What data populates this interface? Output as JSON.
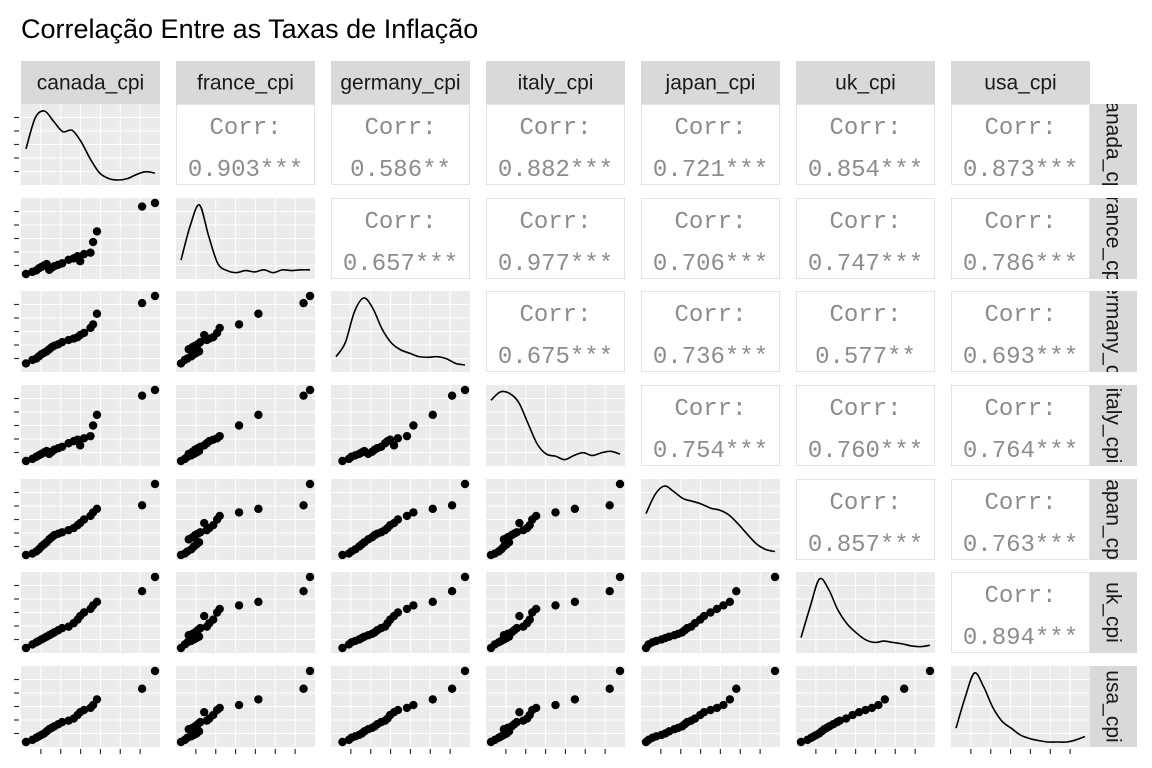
{
  "chart_data": {
    "type": "scatter",
    "title": "Correlação Entre as Taxas de Inflação",
    "variables": [
      "canada_cpi",
      "france_cpi",
      "germany_cpi",
      "italy_cpi",
      "japan_cpi",
      "uk_cpi",
      "usa_cpi"
    ],
    "corr_label": "Corr:",
    "correlations": [
      {
        "row": 0,
        "col": 1,
        "value": "0.903***"
      },
      {
        "row": 0,
        "col": 2,
        "value": "0.586**"
      },
      {
        "row": 0,
        "col": 3,
        "value": "0.882***"
      },
      {
        "row": 0,
        "col": 4,
        "value": "0.721***"
      },
      {
        "row": 0,
        "col": 5,
        "value": "0.854***"
      },
      {
        "row": 0,
        "col": 6,
        "value": "0.873***"
      },
      {
        "row": 1,
        "col": 2,
        "value": "0.657***"
      },
      {
        "row": 1,
        "col": 3,
        "value": "0.977***"
      },
      {
        "row": 1,
        "col": 4,
        "value": "0.706***"
      },
      {
        "row": 1,
        "col": 5,
        "value": "0.747***"
      },
      {
        "row": 1,
        "col": 6,
        "value": "0.786***"
      },
      {
        "row": 2,
        "col": 3,
        "value": "0.675***"
      },
      {
        "row": 2,
        "col": 4,
        "value": "0.736***"
      },
      {
        "row": 2,
        "col": 5,
        "value": "0.577**"
      },
      {
        "row": 2,
        "col": 6,
        "value": "0.693***"
      },
      {
        "row": 3,
        "col": 4,
        "value": "0.754***"
      },
      {
        "row": 3,
        "col": 5,
        "value": "0.760***"
      },
      {
        "row": 3,
        "col": 6,
        "value": "0.764***"
      },
      {
        "row": 4,
        "col": 5,
        "value": "0.857***"
      },
      {
        "row": 4,
        "col": 6,
        "value": "0.763***"
      },
      {
        "row": 5,
        "col": 6,
        "value": "0.894***"
      }
    ],
    "observations": {
      "canada_cpi": [
        0.0,
        0.05,
        0.08,
        0.1,
        0.12,
        0.14,
        0.16,
        0.18,
        0.2,
        0.22,
        0.25,
        0.28,
        0.33,
        0.37,
        0.4,
        0.42,
        0.45,
        0.5,
        0.52,
        0.55,
        0.9,
        1.0
      ],
      "france_cpi": [
        0.0,
        0.03,
        0.05,
        0.08,
        0.1,
        0.12,
        0.14,
        0.06,
        0.09,
        0.11,
        0.13,
        0.15,
        0.2,
        0.22,
        0.25,
        0.18,
        0.28,
        0.3,
        0.45,
        0.6,
        0.95,
        1.0
      ],
      "germany_cpi": [
        0.05,
        0.1,
        0.12,
        0.15,
        0.18,
        0.2,
        0.22,
        0.25,
        0.28,
        0.3,
        0.32,
        0.35,
        0.38,
        0.4,
        0.42,
        0.45,
        0.48,
        0.55,
        0.6,
        0.75,
        0.9,
        1.0
      ],
      "italy_cpi": [
        0.0,
        0.03,
        0.06,
        0.08,
        0.1,
        0.12,
        0.14,
        0.1,
        0.13,
        0.16,
        0.18,
        0.2,
        0.25,
        0.28,
        0.3,
        0.22,
        0.32,
        0.35,
        0.5,
        0.65,
        0.92,
        1.0
      ],
      "japan_cpi": [
        0.0,
        0.02,
        0.05,
        0.08,
        0.12,
        0.15,
        0.18,
        0.22,
        0.25,
        0.28,
        0.3,
        0.32,
        0.35,
        0.38,
        0.42,
        0.45,
        0.5,
        0.55,
        0.6,
        0.65,
        0.7,
        1.0
      ],
      "uk_cpi": [
        0.0,
        0.05,
        0.08,
        0.1,
        0.12,
        0.14,
        0.16,
        0.18,
        0.2,
        0.22,
        0.25,
        0.28,
        0.3,
        0.35,
        0.4,
        0.45,
        0.5,
        0.55,
        0.6,
        0.65,
        0.8,
        1.0
      ],
      "usa_cpi": [
        0.0,
        0.03,
        0.06,
        0.08,
        0.1,
        0.12,
        0.15,
        0.18,
        0.2,
        0.22,
        0.25,
        0.28,
        0.3,
        0.33,
        0.38,
        0.42,
        0.45,
        0.48,
        0.52,
        0.6,
        0.75,
        1.0
      ]
    },
    "densities": [
      [
        0.45,
        0.9,
        1.0,
        0.85,
        0.7,
        0.72,
        0.55,
        0.3,
        0.1,
        0.02,
        0.0,
        0.02,
        0.08,
        0.12,
        0.1
      ],
      [
        0.2,
        0.7,
        1.0,
        0.55,
        0.15,
        0.05,
        0.02,
        0.05,
        0.03,
        0.06,
        0.02,
        0.06,
        0.05,
        0.06,
        0.06
      ],
      [
        0.15,
        0.35,
        0.8,
        1.0,
        0.85,
        0.55,
        0.35,
        0.25,
        0.2,
        0.15,
        0.14,
        0.15,
        0.12,
        0.05,
        0.03
      ],
      [
        0.88,
        1.0,
        0.98,
        0.85,
        0.55,
        0.25,
        0.1,
        0.07,
        0.02,
        0.08,
        0.12,
        0.08,
        0.12,
        0.14,
        0.1
      ],
      [
        0.6,
        0.88,
        1.0,
        0.92,
        0.82,
        0.78,
        0.74,
        0.68,
        0.65,
        0.58,
        0.45,
        0.3,
        0.16,
        0.08,
        0.05
      ],
      [
        0.15,
        0.6,
        1.0,
        0.85,
        0.55,
        0.35,
        0.22,
        0.12,
        0.08,
        0.1,
        0.08,
        0.06,
        0.03,
        0.02,
        0.04
      ],
      [
        0.2,
        0.65,
        1.0,
        0.8,
        0.5,
        0.3,
        0.2,
        0.1,
        0.05,
        0.02,
        0.0,
        0.0,
        0.0,
        0.03,
        0.08
      ]
    ],
    "colors": {
      "panel_background": "#EBEBEB",
      "strip_background": "#D9D9D9",
      "grid_major": "#FFFFFF",
      "points": "#000000",
      "density_line": "#000000",
      "corr_text": "#8C8C8C",
      "corr_panel_background": "#FFFFFF",
      "corr_panel_border": "#E3E3E3"
    },
    "grid": true
  }
}
